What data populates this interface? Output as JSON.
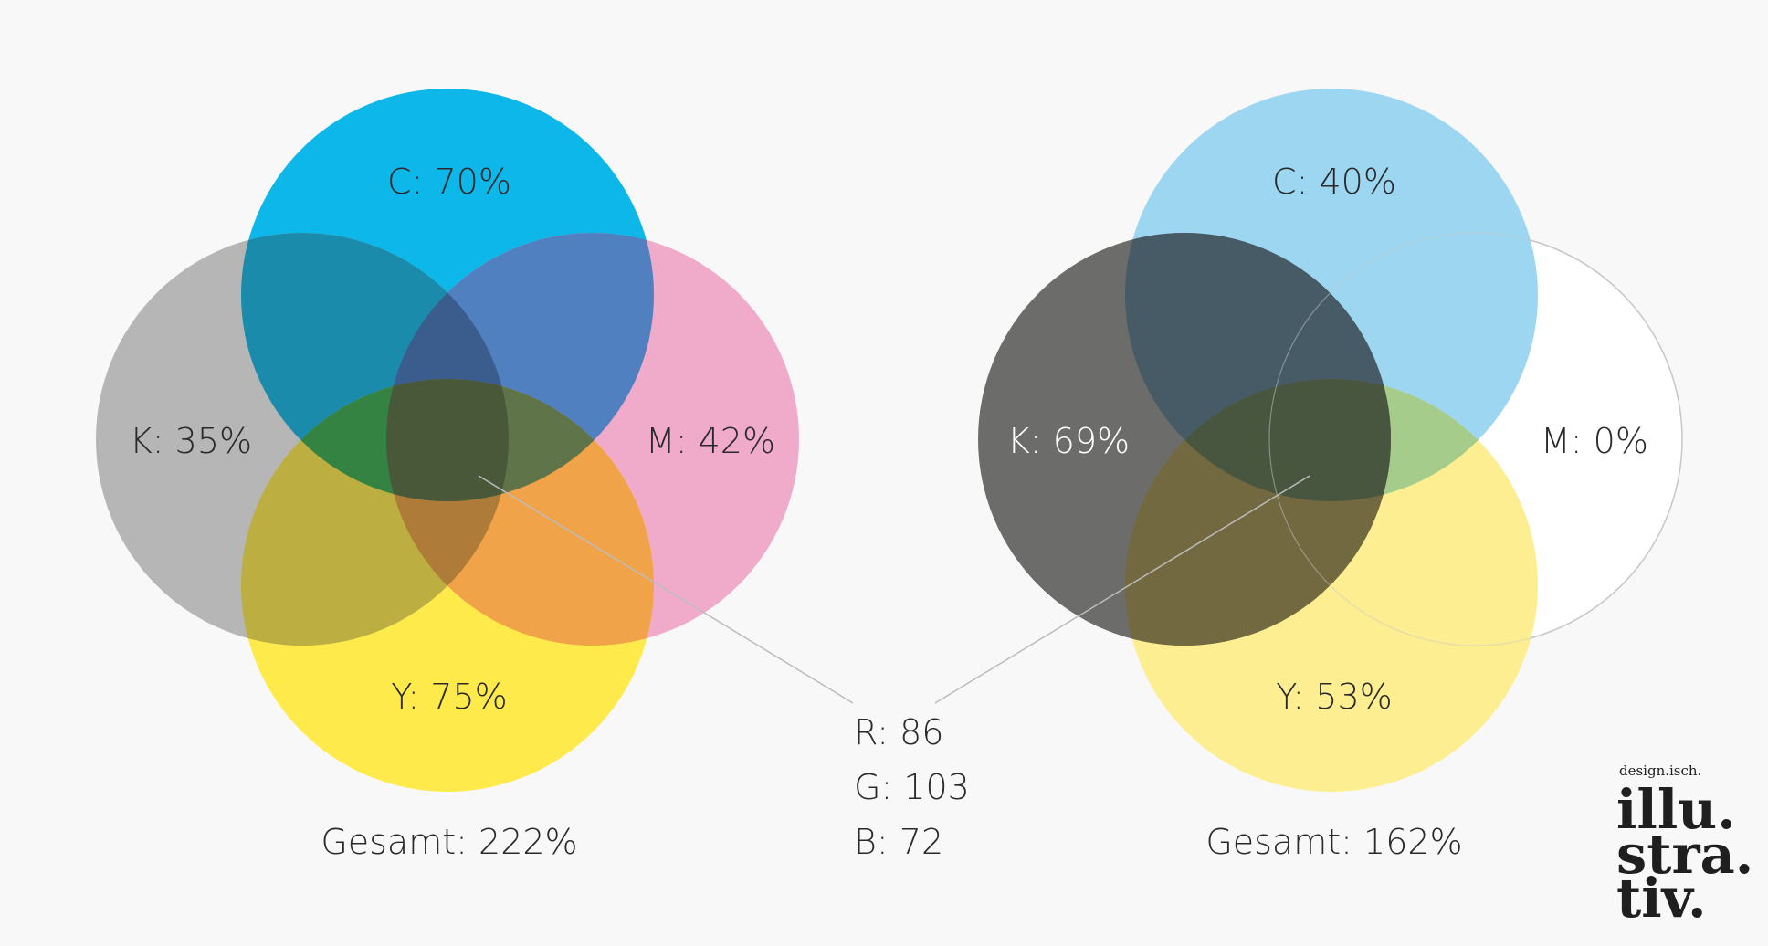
{
  "left_mix": {
    "c_label": "C: 70%",
    "m_label": "M: 42%",
    "y_label": "Y: 75%",
    "k_label": "K: 35%",
    "total_label": "Gesamt: 222%",
    "colors": {
      "c": "#0eb7e9",
      "m": "#f0abcb",
      "y": "#ffea4c",
      "k": "#b5b6b5",
      "ck": "#1a8bab",
      "cm": "#5080c0",
      "cmk": "#3b5d8d",
      "cy": "#358342",
      "ky": "#bcae40",
      "my": "#f0a349",
      "cmy": "#5f7549",
      "mky": "#ae7c38",
      "all": "#495839"
    }
  },
  "right_mix": {
    "c_label": "C: 40%",
    "m_label": "M: 0%",
    "y_label": "Y: 53%",
    "k_label": "K: 69%",
    "total_label": "Gesamt: 162%",
    "colors": {
      "c": "#9dd6f1",
      "m": "#ffffff",
      "y": "#fdee92",
      "k": "#6c6c6a",
      "ck": "#475b66",
      "cy": "#a5cc8a",
      "ky": "#736940",
      "all": "#485640",
      "m_outline": "#c8c8c8"
    }
  },
  "result": {
    "r": "R: 86",
    "g": "G: 103",
    "b": "B: 72"
  },
  "logo": {
    "top": "design.isch.",
    "line1": "illu.",
    "line2": "stra.",
    "line3": "tiv."
  }
}
